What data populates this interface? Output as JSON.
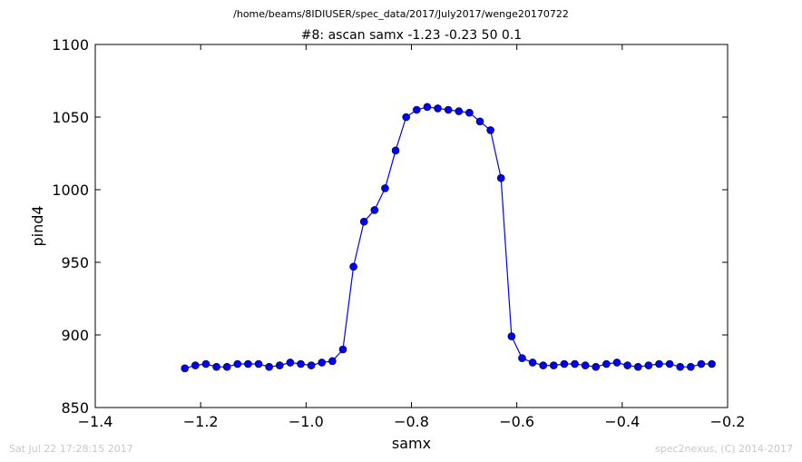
{
  "figure": {
    "suptitle": "/home/beams/8IDIUSER/spec_data/2017/July2017/wenge20170722",
    "footer_left": "Sat Jul 22 17:28:15 2017",
    "footer_right": "spec2nexus, (C) 2014-2017"
  },
  "chart_data": {
    "type": "line",
    "title": "#8: ascan  samx -1.23 -0.23  50 0.1",
    "xlabel": "samx",
    "ylabel": "pind4",
    "xlim": [
      -1.4,
      -0.2
    ],
    "ylim": [
      850,
      1100
    ],
    "xticks": [
      -1.4,
      -1.2,
      -1.0,
      -0.8,
      -0.6,
      -0.4,
      -0.2
    ],
    "xtick_labels": [
      "−1.4",
      "−1.2",
      "−1.0",
      "−0.8",
      "−0.6",
      "−0.4",
      "−0.2"
    ],
    "yticks": [
      850,
      900,
      950,
      1000,
      1050,
      1100
    ],
    "ytick_labels": [
      "850",
      "900",
      "950",
      "1000",
      "1050",
      "1100"
    ],
    "grid": false,
    "color": "#0000ff",
    "marker": "circle",
    "series": [
      {
        "x": [
          -1.23,
          -1.21,
          -1.19,
          -1.17,
          -1.15,
          -1.13,
          -1.11,
          -1.09,
          -1.07,
          -1.05,
          -1.03,
          -1.01,
          -0.99,
          -0.97,
          -0.95,
          -0.93,
          -0.91,
          -0.89,
          -0.87,
          -0.85,
          -0.83,
          -0.81,
          -0.79,
          -0.77,
          -0.75,
          -0.73,
          -0.71,
          -0.69,
          -0.67,
          -0.65,
          -0.63,
          -0.61,
          -0.59,
          -0.57,
          -0.55,
          -0.53,
          -0.51,
          -0.49,
          -0.47,
          -0.45,
          -0.43,
          -0.41,
          -0.39,
          -0.37,
          -0.35,
          -0.33,
          -0.31,
          -0.29,
          -0.27,
          -0.25,
          -0.23
        ],
        "y": [
          877,
          879,
          880,
          878,
          878,
          880,
          880,
          880,
          878,
          879,
          881,
          880,
          879,
          881,
          882,
          890,
          947,
          978,
          986,
          1001,
          1027,
          1050,
          1055,
          1057,
          1056,
          1055,
          1054,
          1053,
          1047,
          1041,
          1008,
          899,
          884,
          881,
          879,
          879,
          880,
          880,
          879,
          878,
          880,
          881,
          879,
          878,
          879,
          880,
          880,
          878,
          878,
          880,
          880
        ]
      }
    ]
  }
}
